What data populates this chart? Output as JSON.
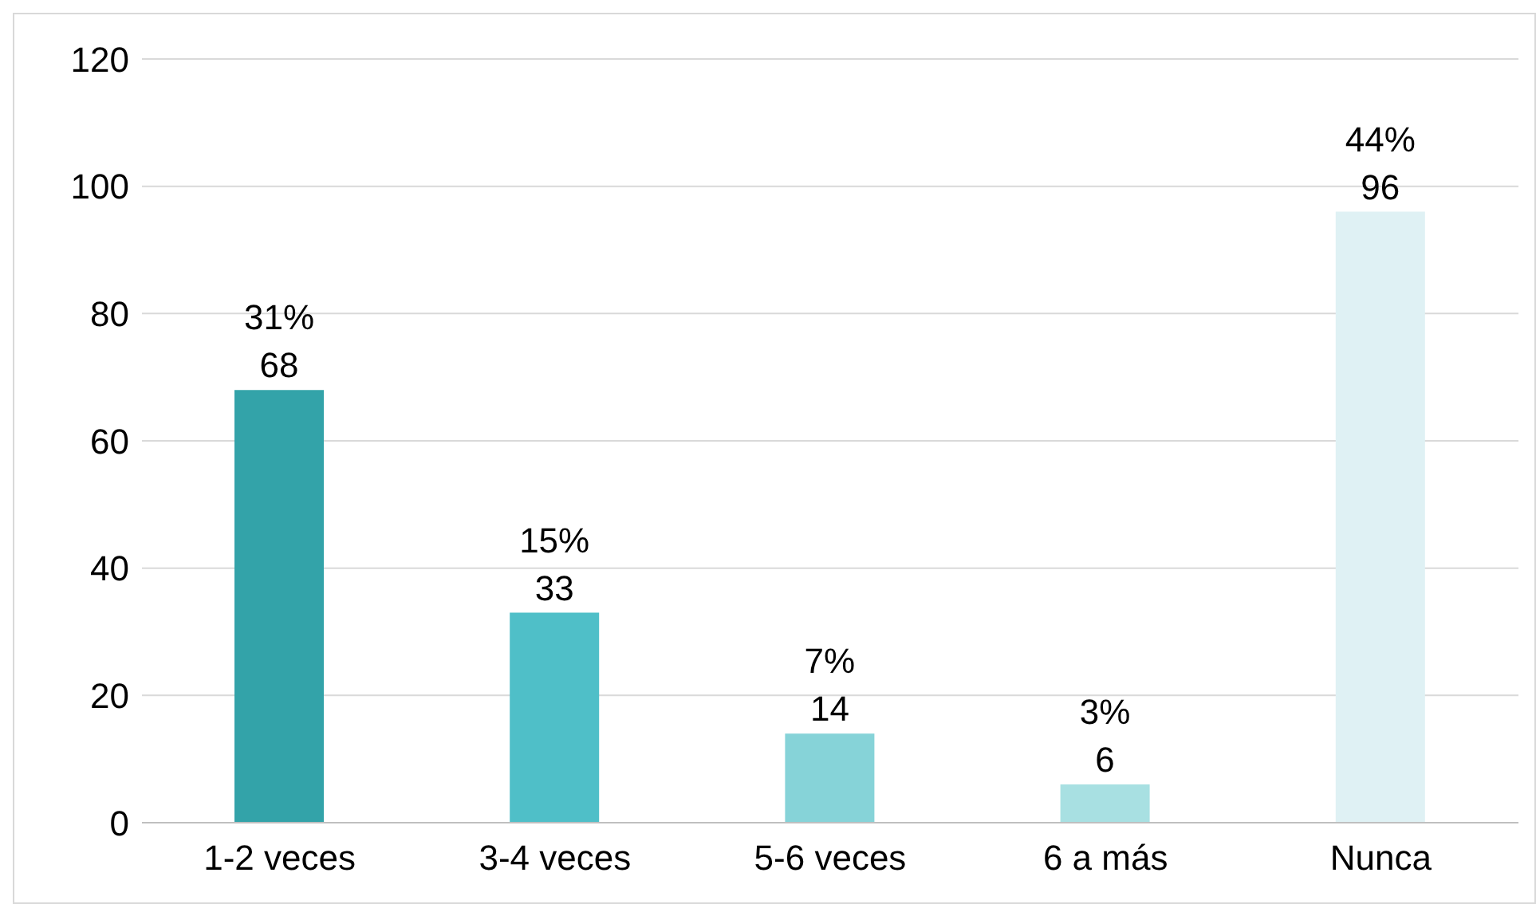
{
  "chart_data": {
    "type": "bar",
    "categories": [
      "1-2 veces",
      "3-4 veces",
      "5-6 veces",
      "6 a más",
      "Nunca"
    ],
    "values": [
      68,
      33,
      14,
      6,
      96
    ],
    "colors": [
      "#33a3a9",
      "#4fbfc8",
      "#86d3d8",
      "#a8e0e2",
      "#dff1f4"
    ],
    "value_labels": [
      "31%\n68",
      "15%\n33",
      "7%\n14",
      "3%\n6",
      "44%\n96"
    ],
    "ylim": [
      0,
      120
    ],
    "yticks": [
      0,
      20,
      40,
      60,
      80,
      100,
      120
    ],
    "grid": "y"
  }
}
